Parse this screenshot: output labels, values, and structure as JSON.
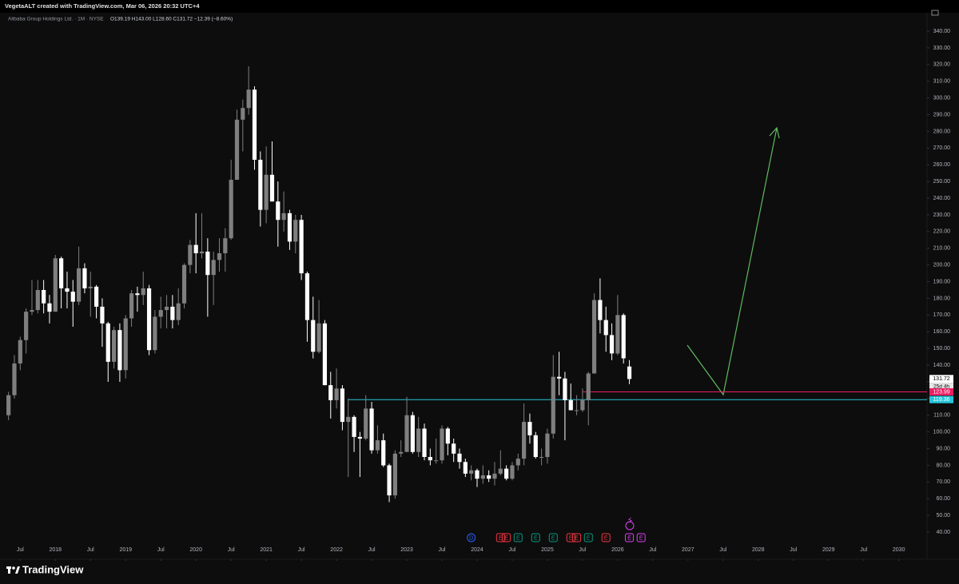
{
  "header": {
    "author_line": "VegetaALT created with TradingView.com, Mar 06, 2026 20:32 UTC+4",
    "symbol": "Alibaba Group Holdings Ltd. · 1M · NYSE",
    "ohlc": "O139.19 H143.00 L128.60 C131.72 −12.39 (−8.60%)"
  },
  "chart_data": {
    "type": "candlestick",
    "up_color": "#7f7f7f",
    "down_color": "#ffffff",
    "x": [
      "2017-05",
      "2017-06",
      "2017-07",
      "2017-08",
      "2017-09",
      "2017-10",
      "2017-11",
      "2017-12",
      "2018-01",
      "2018-02",
      "2018-03",
      "2018-04",
      "2018-05",
      "2018-06",
      "2018-07",
      "2018-08",
      "2018-09",
      "2018-10",
      "2018-11",
      "2018-12",
      "2019-01",
      "2019-02",
      "2019-03",
      "2019-04",
      "2019-05",
      "2019-06",
      "2019-07",
      "2019-08",
      "2019-09",
      "2019-10",
      "2019-11",
      "2019-12",
      "2020-01",
      "2020-02",
      "2020-03",
      "2020-04",
      "2020-05",
      "2020-06",
      "2020-07",
      "2020-08",
      "2020-09",
      "2020-10",
      "2020-11",
      "2020-12",
      "2021-01",
      "2021-02",
      "2021-03",
      "2021-04",
      "2021-05",
      "2021-06",
      "2021-07",
      "2021-08",
      "2021-09",
      "2021-10",
      "2021-11",
      "2021-12",
      "2022-01",
      "2022-02",
      "2022-03",
      "2022-04",
      "2022-05",
      "2022-06",
      "2022-07",
      "2022-08",
      "2022-09",
      "2022-10",
      "2022-11",
      "2022-12",
      "2023-01",
      "2023-02",
      "2023-03",
      "2023-04",
      "2023-05",
      "2023-06",
      "2023-07",
      "2023-08",
      "2023-09",
      "2023-10",
      "2023-11",
      "2023-12",
      "2024-01",
      "2024-02",
      "2024-03",
      "2024-04",
      "2024-05",
      "2024-06",
      "2024-07",
      "2024-08",
      "2024-09",
      "2024-10",
      "2024-11",
      "2024-12",
      "2025-01",
      "2025-02",
      "2025-03",
      "2025-04",
      "2025-05",
      "2025-06",
      "2025-07",
      "2025-08",
      "2025-09",
      "2025-10",
      "2025-11",
      "2025-12",
      "2026-01",
      "2026-02",
      "2026-03"
    ],
    "open": [
      110,
      122,
      141,
      155,
      172,
      173,
      185,
      177,
      172,
      204,
      186,
      184,
      178,
      198,
      186,
      187,
      175,
      165,
      142,
      161,
      137,
      168,
      183,
      182,
      186,
      149,
      169,
      173,
      175,
      167,
      177,
      200,
      212,
      207,
      208,
      194,
      203,
      207,
      216,
      251,
      287,
      294,
      305,
      263,
      233,
      254,
      238,
      227,
      231,
      214,
      227,
      195,
      167,
      148,
      165,
      128,
      119,
      126,
      106,
      109,
      97,
      96,
      114,
      89,
      95,
      80,
      62,
      87,
      88,
      110,
      88,
      102,
      85,
      83,
      83,
      102,
      93,
      87,
      82,
      75,
      77,
      72,
      74,
      72,
      75,
      78,
      72,
      80,
      84,
      106,
      98,
      85,
      85,
      99,
      133,
      132,
      119,
      113,
      113,
      119,
      135,
      179,
      167,
      158,
      147,
      170,
      139.19
    ],
    "high": [
      124,
      146,
      157,
      174,
      191,
      191,
      191,
      182,
      206,
      205,
      196,
      191,
      211,
      201,
      196,
      188,
      180,
      166,
      163,
      165,
      170,
      185,
      187,
      196,
      188,
      173,
      181,
      182,
      182,
      186,
      201,
      215,
      231,
      231,
      216,
      208,
      216,
      222,
      263,
      293,
      299,
      319,
      307,
      268,
      271,
      274,
      250,
      244,
      233,
      230,
      230,
      196,
      181,
      179,
      167,
      136,
      138,
      128,
      120,
      110,
      100,
      122,
      118,
      104,
      99,
      81,
      89,
      95,
      121,
      112,
      109,
      105,
      90,
      96,
      104,
      103,
      96,
      90,
      84,
      80,
      78,
      80,
      77,
      82,
      89,
      80,
      82,
      87,
      117,
      111,
      100,
      90,
      102,
      146,
      148,
      136,
      129,
      122,
      126,
      136,
      183,
      192,
      175,
      165,
      182,
      171,
      143
    ],
    "low": [
      107,
      120,
      137,
      147,
      170,
      171,
      171,
      165,
      172,
      174,
      174,
      163,
      176,
      183,
      169,
      168,
      151,
      130,
      138,
      130,
      132,
      163,
      172,
      176,
      146,
      147,
      162,
      162,
      162,
      164,
      174,
      195,
      195,
      204,
      169,
      176,
      196,
      196,
      215,
      251,
      268,
      290,
      257,
      223,
      225,
      240,
      211,
      220,
      209,
      207,
      191,
      154,
      144,
      147,
      128,
      108,
      114,
      101,
      73,
      88,
      73,
      95,
      87,
      87,
      79,
      58,
      60,
      85,
      88,
      87,
      85,
      83,
      80,
      81,
      81,
      86,
      82,
      78,
      73,
      71,
      67,
      69,
      70,
      68,
      74,
      71,
      71,
      77,
      80,
      93,
      84,
      80,
      81,
      96,
      122,
      95,
      113,
      110,
      112,
      104,
      135,
      159,
      148,
      143,
      146,
      141,
      128.6
    ],
    "close": [
      122,
      141,
      155,
      172,
      173,
      185,
      177,
      172,
      204,
      186,
      184,
      178,
      198,
      186,
      187,
      175,
      165,
      142,
      161,
      137,
      168,
      183,
      182,
      186,
      149,
      169,
      173,
      175,
      167,
      177,
      200,
      212,
      207,
      208,
      194,
      203,
      207,
      216,
      251,
      287,
      294,
      305,
      263,
      233,
      254,
      238,
      227,
      231,
      214,
      227,
      195,
      167,
      148,
      165,
      128,
      119,
      126,
      106,
      109,
      97,
      96,
      114,
      89,
      95,
      80,
      62,
      87,
      88,
      110,
      88,
      102,
      85,
      83,
      83,
      102,
      93,
      87,
      82,
      75,
      77,
      72,
      74,
      72,
      75,
      78,
      72,
      80,
      84,
      106,
      98,
      85,
      85,
      99,
      133,
      132,
      119,
      113,
      113,
      119,
      135,
      179,
      167,
      158,
      147,
      170,
      144.11,
      131.72
    ],
    "xlim": [
      "2017-03",
      "2030-05"
    ],
    "ylim": [
      35,
      345
    ],
    "xticks": [
      {
        "value": "2017-07",
        "label": "Jul"
      },
      {
        "value": "2018-01",
        "label": "2018"
      },
      {
        "value": "2018-07",
        "label": "Jul"
      },
      {
        "value": "2019-01",
        "label": "2019"
      },
      {
        "value": "2019-07",
        "label": "Jul"
      },
      {
        "value": "2020-01",
        "label": "2020"
      },
      {
        "value": "2020-07",
        "label": "Jul"
      },
      {
        "value": "2021-01",
        "label": "2021"
      },
      {
        "value": "2021-07",
        "label": "Jul"
      },
      {
        "value": "2022-01",
        "label": "2022"
      },
      {
        "value": "2022-07",
        "label": "Jul"
      },
      {
        "value": "2023-01",
        "label": "2023"
      },
      {
        "value": "2023-07",
        "label": "Jul"
      },
      {
        "value": "2024-01",
        "label": "2024"
      },
      {
        "value": "2024-07",
        "label": "Jul"
      },
      {
        "value": "2025-01",
        "label": "2025"
      },
      {
        "value": "2025-07",
        "label": "Jul"
      },
      {
        "value": "2026-01",
        "label": "2026"
      },
      {
        "value": "2026-07",
        "label": "Jul"
      },
      {
        "value": "2027-01",
        "label": "2027"
      },
      {
        "value": "2027-07",
        "label": "Jul"
      },
      {
        "value": "2028-01",
        "label": "2028"
      },
      {
        "value": "2028-07",
        "label": "Jul"
      },
      {
        "value": "2029-01",
        "label": "2029"
      },
      {
        "value": "2029-07",
        "label": "Jul"
      },
      {
        "value": "2030-01",
        "label": "2030"
      }
    ],
    "yticks": [
      {
        "value": 40,
        "label": "40.00"
      },
      {
        "value": 50,
        "label": "50.00"
      },
      {
        "value": 60,
        "label": "60.00"
      },
      {
        "value": 70,
        "label": "70.00"
      },
      {
        "value": 80,
        "label": "80.00"
      },
      {
        "value": 90,
        "label": "90.00"
      },
      {
        "value": 100,
        "label": "100.00"
      },
      {
        "value": 110,
        "label": "110.00"
      },
      {
        "value": 120,
        "label": "120.00"
      },
      {
        "value": 130,
        "label": "130.00"
      },
      {
        "value": 140,
        "label": "140.00"
      },
      {
        "value": 150,
        "label": "150.00"
      },
      {
        "value": 160,
        "label": "160.00"
      },
      {
        "value": 170,
        "label": "170.00"
      },
      {
        "value": 180,
        "label": "180.00"
      },
      {
        "value": 190,
        "label": "190.00"
      },
      {
        "value": 200,
        "label": "200.00"
      },
      {
        "value": 210,
        "label": "210.00"
      },
      {
        "value": 220,
        "label": "220.00"
      },
      {
        "value": 230,
        "label": "230.00"
      },
      {
        "value": 240,
        "label": "240.00"
      },
      {
        "value": 250,
        "label": "250.00"
      },
      {
        "value": 260,
        "label": "260.00"
      },
      {
        "value": 270,
        "label": "270.00"
      },
      {
        "value": 280,
        "label": "280.00"
      },
      {
        "value": 290,
        "label": "290.00"
      },
      {
        "value": 300,
        "label": "300.00"
      },
      {
        "value": 310,
        "label": "310.00"
      },
      {
        "value": 320,
        "label": "320.00"
      },
      {
        "value": 330,
        "label": "330.00"
      },
      {
        "value": 340,
        "label": "340.00"
      }
    ],
    "grid": false,
    "countdown": "25d 4h",
    "levels": [
      {
        "value": 123.99,
        "color": "#e91e63",
        "from": "2025-07"
      },
      {
        "value": 119.36,
        "color": "#26c6da",
        "from": "2022-03"
      }
    ],
    "events": [
      {
        "x": "2023-12",
        "label": "D",
        "color": "#2962ff"
      },
      {
        "x": "2024-05",
        "label": "E",
        "color": "#f23645"
      },
      {
        "x": "2024-06",
        "label": "E",
        "color": "#f23645"
      },
      {
        "x": "2024-08",
        "label": "E",
        "color": "#089981"
      },
      {
        "x": "2024-11",
        "label": "E",
        "color": "#089981"
      },
      {
        "x": "2025-02",
        "label": "E",
        "color": "#089981"
      },
      {
        "x": "2025-05",
        "label": "E",
        "color": "#f23645"
      },
      {
        "x": "2025-06",
        "label": "E",
        "color": "#f23645"
      },
      {
        "x": "2025-08",
        "label": "E",
        "color": "#089981"
      },
      {
        "x": "2025-11",
        "label": "E",
        "color": "#f23645"
      },
      {
        "x": "2026-03",
        "label": "E",
        "color": "#e040fb"
      },
      {
        "x": "2026-05",
        "label": "E",
        "color": "#e040fb"
      }
    ]
  },
  "footer": {
    "brand": "TradingView"
  }
}
